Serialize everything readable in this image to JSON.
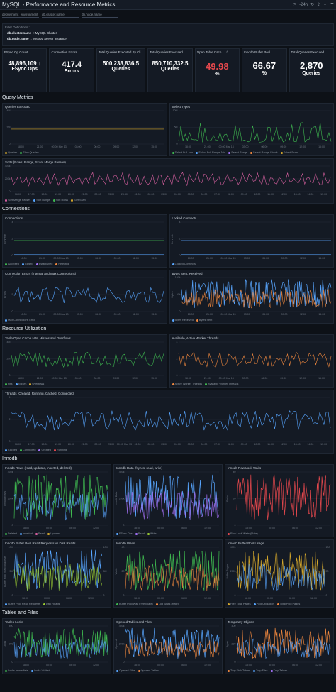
{
  "header": {
    "title": "MySQL - Performance and Resource Metrics",
    "time_range": "-24h"
  },
  "filters": [
    "deployment_environment",
    "db.cluster.name",
    "db.node.name"
  ],
  "filter_definitions": {
    "heading": "Filter Definitions :",
    "rows": [
      {
        "key": "db.cluster.name",
        "value": ": MySQL Cluster"
      },
      {
        "key": "db.node.name",
        "value": ": MySQL Server Instance"
      }
    ]
  },
  "kpis": [
    {
      "title": "FSync Op Count",
      "value": "48,896,109",
      "unit": "FSync Ops",
      "icon": "arrow-down-icon"
    },
    {
      "title": "Connection Errors",
      "value": "417.4",
      "unit": "Errors"
    },
    {
      "title": "Total Queries Executed By Cli...",
      "value": "500,238,836.5",
      "unit": "Queries"
    },
    {
      "title": "Total Queries Executed",
      "value": "850,710,332.5",
      "unit": "Queries"
    },
    {
      "title": "Open Table Cach...",
      "value": "49.98",
      "unit": "%",
      "color": "#e5484d",
      "icon": "warning-icon"
    },
    {
      "title": "Innodb Buffer Pool...",
      "value": "66.67",
      "unit": "%"
    },
    {
      "title": "Total Queries Executed",
      "value": "2,870",
      "unit": "Queries"
    }
  ],
  "sections": {
    "query": "Query Metrics",
    "connections": "Connections",
    "resource": "Resource Utilization",
    "innodb": "Innodb",
    "tables": "Tables and Files"
  },
  "panels": {
    "queries_executed": {
      "title": "Queries Executed",
      "yticks": [
        "4M",
        "2M",
        "0"
      ],
      "xticks": [
        "18:00",
        "21:00",
        "00:00 Mar 13",
        "03:00",
        "06:00",
        "09:00",
        "12:00",
        "15:00"
      ],
      "legend": [
        {
          "name": "Queries",
          "color": "#d4a72c"
        },
        {
          "name": "Slow Queries",
          "color": "#3fb950"
        }
      ]
    },
    "select_types": {
      "title": "Select Types",
      "yticks": [
        "10M",
        "5M",
        "0"
      ],
      "xticks": [
        "18:00",
        "21:00",
        "00:00 Mar 13",
        "03:00",
        "06:00",
        "09:00",
        "12:00",
        "15:00"
      ],
      "legend": [
        {
          "name": "Select Full Join",
          "color": "#3fb950"
        },
        {
          "name": "Select Full Range Join",
          "color": "#58a6ff"
        },
        {
          "name": "Select Range",
          "color": "#a371f7"
        },
        {
          "name": "Select Range Check",
          "color": "#f0883e"
        },
        {
          "name": "Select Scan",
          "color": "#d4a72c"
        }
      ]
    },
    "sorts": {
      "title": "Sorts (Rows, Range, Scan, Merge Passes)",
      "yticks": [
        "400k",
        "200k",
        "0"
      ],
      "xticks": [
        "16:00",
        "17:00",
        "18:00",
        "19:00",
        "20:00",
        "21:00",
        "22:00",
        "23:00",
        "23:40",
        "01:00",
        "02:00",
        "03:00",
        "04:00",
        "05:00",
        "06:00",
        "07:00",
        "08:00",
        "09:00",
        "10:00",
        "11:00",
        "12:00",
        "13:00",
        "14:00",
        "15:00"
      ],
      "legend": [
        {
          "name": "Sort Merge Passes",
          "color": "#db61a2"
        },
        {
          "name": "Sort Range",
          "color": "#58a6ff"
        },
        {
          "name": "Sort Rows",
          "color": "#3fb950"
        },
        {
          "name": "Sort Scan",
          "color": "#d4a72c"
        }
      ]
    },
    "connections": {
      "title": "Connections",
      "yticks": [
        "4",
        "2",
        "0"
      ],
      "ylabel": "Connects",
      "xticks": [
        "18:00",
        "21:00",
        "00:00 Mar 13",
        "03:00",
        "06:00",
        "09:00",
        "12:00",
        "15:00"
      ],
      "legend": [
        {
          "name": "Accepted",
          "color": "#3fb950"
        },
        {
          "name": "Closed",
          "color": "#58a6ff"
        },
        {
          "name": "Established",
          "color": "#a371f7"
        },
        {
          "name": "Rejected",
          "color": "#f0883e"
        }
      ]
    },
    "locked_connects": {
      "title": "Locked Connects",
      "yticks": [
        "4",
        "2",
        "0"
      ],
      "ylabel": "Connects",
      "xticks": [
        "18:00",
        "21:00",
        "00:00 Mar 13",
        "03:00",
        "06:00",
        "09:00",
        "12:00",
        "15:00"
      ],
      "legend": [
        {
          "name": "Locked Connects",
          "color": "#58a6ff"
        }
      ]
    },
    "conn_errors": {
      "title": "Connection Errors (Internal and Max Connections)",
      "yticks": [
        "10",
        "5",
        "0"
      ],
      "ylabel": "Errors",
      "xticks": [
        "18:00",
        "21:00",
        "00:00 Mar 13",
        "03:00",
        "06:00",
        "09:00",
        "12:00",
        "15:00"
      ],
      "legend": [
        {
          "name": "Max Connections Error",
          "color": "#58a6ff"
        }
      ]
    },
    "bytes": {
      "title": "Bytes Sent, Received",
      "yticks": [
        "100k",
        "50k",
        "0"
      ],
      "ylabel": "Bytes",
      "xticks": [
        "18:00",
        "21:00",
        "00:00 Mar 13",
        "03:00",
        "06:00",
        "09:00",
        "12:00",
        "15:00"
      ],
      "legend": [
        {
          "name": "Bytes Received",
          "color": "#58a6ff"
        },
        {
          "name": "Bytes Sent",
          "color": "#f0883e"
        }
      ]
    },
    "table_open": {
      "title": "Table Open Cache Hits, Misses and Overflows",
      "yticks": [
        "4M",
        "2M",
        "0"
      ],
      "xticks": [
        "18:00",
        "21:00",
        "00:00 Mar 13",
        "03:00",
        "06:00",
        "09:00",
        "12:00",
        "15:00"
      ],
      "legend": [
        {
          "name": "Hits",
          "color": "#3fb950"
        },
        {
          "name": "Misses",
          "color": "#58a6ff"
        },
        {
          "name": "Overflows",
          "color": "#d4a72c"
        }
      ]
    },
    "worker_threads": {
      "title": "Available, Active Worker Threads",
      "yticks": [
        "4",
        "2",
        "0"
      ],
      "xticks": [
        "18:00",
        "21:00",
        "00:00 Mar 13",
        "03:00",
        "06:00",
        "09:00",
        "12:00",
        "15:00"
      ],
      "legend": [
        {
          "name": "Active Worker Threads",
          "color": "#f0883e"
        },
        {
          "name": "Available Worker Threads",
          "color": "#3fb950"
        }
      ]
    },
    "threads": {
      "title": "Threads (Created, Running, Cached, Connected)",
      "yticks": [
        "4",
        "2",
        "0"
      ],
      "xticks": [
        "16:00",
        "17:00",
        "18:00",
        "19:00",
        "20:00",
        "21:00",
        "22:00",
        "23:00",
        "00:00 Mar 13",
        "01:00",
        "02:00",
        "03:00",
        "04:00",
        "05:00",
        "06:00",
        "07:00",
        "08:00",
        "09:00",
        "10:00",
        "11:00",
        "12:00",
        "13:00",
        "14:00",
        "15:00"
      ],
      "legend": [
        {
          "name": "Cached",
          "color": "#58a6ff"
        },
        {
          "name": "Connected",
          "color": "#3fb950"
        },
        {
          "name": "Created",
          "color": "#a371f7"
        },
        {
          "name": "Running",
          "color": "#e5484d"
        }
      ]
    },
    "innodb_rows": {
      "title": "Innodb Rows (read, updated, inserted, deleted)",
      "yticks": [
        "400k",
        "200k",
        "0"
      ],
      "ylabel": "Innodb Rows",
      "xticks": [
        "18:00",
        "00:00",
        "06:00",
        "12:00"
      ],
      "legend": [
        {
          "name": "Deleted",
          "color": "#3fb950"
        },
        {
          "name": "Inserted",
          "color": "#58a6ff"
        },
        {
          "name": "Read",
          "color": "#db61a2"
        },
        {
          "name": "Updated",
          "color": "#d4a72c"
        }
      ]
    },
    "innodb_data": {
      "title": "Innodb Data (fsyncs, read, write)",
      "yticks": [
        "400k",
        "200k",
        "0"
      ],
      "ylabel": "Innodb Data",
      "xticks": [
        "18:00",
        "00:00",
        "06:00",
        "12:00"
      ],
      "legend": [
        {
          "name": "FSync Ops",
          "color": "#58a6ff"
        },
        {
          "name": "Read",
          "color": "#a371f7"
        },
        {
          "name": "Write",
          "color": "#9acd32"
        }
      ]
    },
    "row_lock": {
      "title": "Innodb Row Lock Waits",
      "yticks": [
        "40",
        "20",
        "0"
      ],
      "ylabel": "Ratio",
      "xticks": [
        "18:00",
        "00:00",
        "06:00",
        "12:00"
      ],
      "legend": [
        {
          "name": "Row Lock Waits (Rate)",
          "color": "#e5484d"
        }
      ]
    },
    "buffer_read": {
      "title": "Innodb Buffer Pool Read Requests vs Disk Reads",
      "yticks": [
        "10M",
        "5M",
        "0"
      ],
      "y2ticks": [
        "10M",
        "5M",
        "0"
      ],
      "ylabel": "Buffer Pool Read Requests",
      "xticks": [
        "18:00",
        "00:00",
        "06:00",
        "12:00"
      ],
      "legend": [
        {
          "name": "Buffer Pool Read Requests",
          "color": "#58a6ff"
        },
        {
          "name": "Disk Reads",
          "color": "#9acd32"
        }
      ]
    },
    "innodb_waits": {
      "title": "Innodb Waits",
      "yticks": [
        "40",
        "20",
        "0"
      ],
      "ylabel": "Waits",
      "xticks": [
        "18:00",
        "00:00",
        "06:00",
        "12:00"
      ],
      "legend": [
        {
          "name": "Buffer Pool Wait Free (Rate)",
          "color": "#3fb950"
        },
        {
          "name": "Log Waits (Rate)",
          "color": "#f0883e"
        }
      ]
    },
    "buffer_usage": {
      "title": "Innodb Buffer Pool Usage",
      "yticks": [
        "400k",
        "200k",
        "0"
      ],
      "y2ticks": [
        "100",
        "50",
        "0"
      ],
      "ylabel": "Buffer Pages",
      "xticks": [
        "18:00",
        "00:00",
        "06:00",
        "12:00"
      ],
      "legend": [
        {
          "name": "Free Total Pages",
          "color": "#d4a72c"
        },
        {
          "name": "Pool Utilization",
          "color": "#58a6ff"
        },
        {
          "name": "Total Pool Pages",
          "color": "#f0883e"
        }
      ]
    },
    "tables_locks": {
      "title": "Tables Locks",
      "yticks": [
        "400",
        "200",
        "0"
      ],
      "ylabel": "Locks",
      "xticks": [
        "18:00",
        "00:00",
        "06:00",
        "12:00"
      ],
      "legend": [
        {
          "name": "Locks Immediate",
          "color": "#3fb950"
        },
        {
          "name": "Locks Waited",
          "color": "#58a6ff"
        }
      ]
    },
    "opened_tables": {
      "title": "Opened Tables and Files",
      "yticks": [
        "400k",
        "200k",
        "0"
      ],
      "ylabel": "Opened",
      "xticks": [
        "18:00",
        "00:00",
        "06:00",
        "12:00"
      ],
      "legend": [
        {
          "name": "Opened Files",
          "color": "#58a6ff"
        },
        {
          "name": "Opened Tables",
          "color": "#f0883e"
        }
      ]
    },
    "temp_objects": {
      "title": "Temporary Objects",
      "yticks": [
        "400",
        "200",
        "0"
      ],
      "ylabel": "Bytes",
      "xticks": [
        "18:00",
        "00:00",
        "06:00",
        "12:00"
      ],
      "legend": [
        {
          "name": "Tmp Disk Tables",
          "color": "#f0883e"
        },
        {
          "name": "Tmp Files",
          "color": "#58a6ff"
        },
        {
          "name": "Tmp Tables",
          "color": "#a371f7"
        }
      ]
    }
  }
}
